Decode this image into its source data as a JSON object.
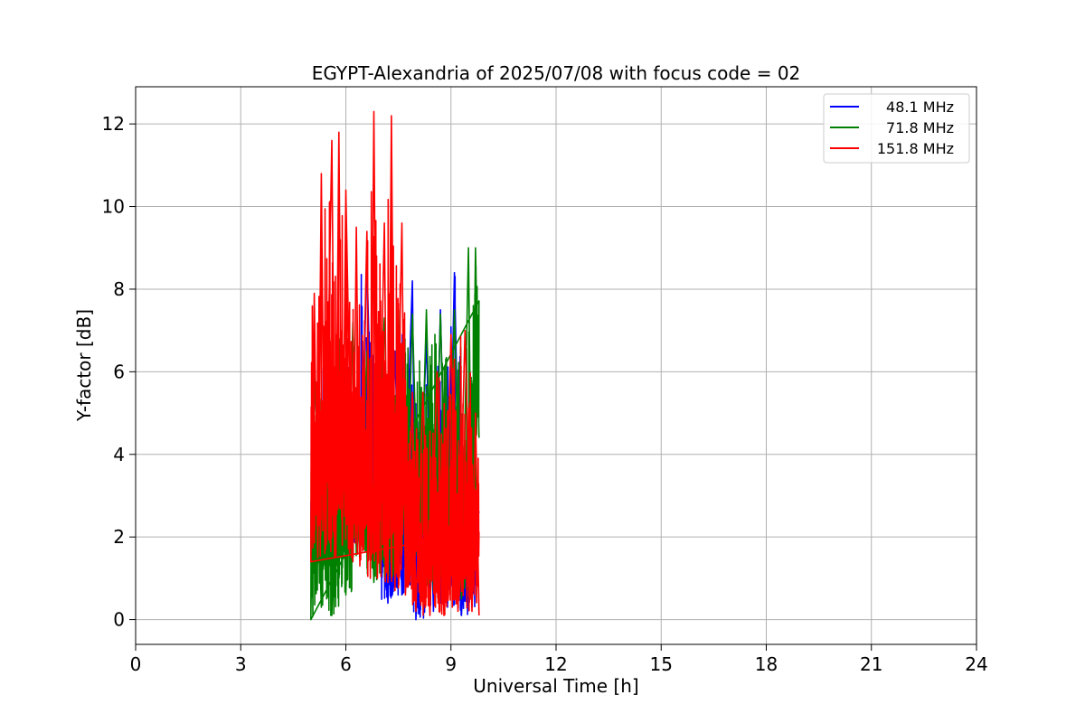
{
  "chart_data": {
    "type": "line",
    "title": "EGYPT-Alexandria of 2025/07/08 with focus code = 02",
    "xlabel": "Universal Time [h]",
    "ylabel": "Y-factor [dB]",
    "xlim": [
      0,
      24
    ],
    "ylim": [
      -0.6,
      12.9
    ],
    "xticks": [
      0,
      3,
      6,
      9,
      12,
      15,
      18,
      21,
      24
    ],
    "yticks": [
      0,
      2,
      4,
      6,
      8,
      10,
      12
    ],
    "grid": true,
    "legend_position": "top-right",
    "series": [
      {
        "name": "48.1 MHz",
        "color": "#0000ff",
        "x_range": [
          5.0,
          9.8
        ],
        "y_range": [
          0.0,
          8.8
        ],
        "points": [
          [
            5.0,
            1.8
          ],
          [
            5.1,
            6.0
          ],
          [
            5.3,
            1.5
          ],
          [
            5.5,
            6.5
          ],
          [
            5.7,
            1.8
          ],
          [
            5.9,
            6.2
          ],
          [
            6.1,
            1.6
          ],
          [
            6.3,
            5.5
          ],
          [
            6.4,
            1.7
          ],
          [
            6.6,
            8.8
          ],
          [
            6.8,
            1.5
          ],
          [
            7.0,
            6.0
          ],
          [
            7.2,
            0.4
          ],
          [
            7.4,
            6.5
          ],
          [
            7.6,
            0.6
          ],
          [
            7.9,
            8.2
          ],
          [
            8.0,
            0.0
          ],
          [
            8.3,
            6.8
          ],
          [
            8.5,
            0.2
          ],
          [
            8.7,
            7.5
          ],
          [
            8.9,
            0.3
          ],
          [
            9.1,
            8.4
          ],
          [
            9.3,
            0.1
          ],
          [
            9.5,
            3.8
          ],
          [
            9.6,
            0.3
          ],
          [
            9.7,
            2.6
          ]
        ]
      },
      {
        "name": "71.8 MHz",
        "color": "#008000",
        "x_range": [
          5.0,
          9.8
        ],
        "y_range": [
          0.0,
          9.0
        ],
        "points": [
          [
            5.0,
            0.0
          ],
          [
            5.1,
            6.2
          ],
          [
            5.3,
            0.3
          ],
          [
            5.5,
            7.5
          ],
          [
            5.6,
            0.1
          ],
          [
            5.8,
            6.8
          ],
          [
            6.0,
            0.6
          ],
          [
            6.2,
            7.2
          ],
          [
            6.4,
            1.5
          ],
          [
            6.6,
            6.5
          ],
          [
            6.8,
            0.9
          ],
          [
            7.1,
            7.3
          ],
          [
            7.3,
            1.0
          ],
          [
            7.5,
            7.5
          ],
          [
            7.7,
            1.3
          ],
          [
            7.9,
            7.4
          ],
          [
            8.1,
            1.2
          ],
          [
            8.3,
            7.5
          ],
          [
            8.5,
            0.7
          ],
          [
            8.7,
            7.4
          ],
          [
            8.9,
            1.0
          ],
          [
            9.1,
            7.5
          ],
          [
            9.3,
            0.5
          ],
          [
            9.5,
            9.0
          ],
          [
            9.6,
            1.4
          ],
          [
            9.7,
            9.0
          ],
          [
            9.8,
            4.4
          ]
        ]
      },
      {
        "name": "151.8 MHz",
        "color": "#ff0000",
        "x_range": [
          5.0,
          9.8
        ],
        "y_range": [
          0.0,
          12.3
        ],
        "points": [
          [
            5.0,
            1.4
          ],
          [
            5.1,
            7.9
          ],
          [
            5.2,
            1.5
          ],
          [
            5.3,
            10.8
          ],
          [
            5.4,
            1.6
          ],
          [
            5.6,
            11.6
          ],
          [
            5.7,
            1.5
          ],
          [
            5.8,
            11.8
          ],
          [
            5.9,
            1.8
          ],
          [
            6.0,
            10.4
          ],
          [
            6.2,
            1.4
          ],
          [
            6.3,
            9.5
          ],
          [
            6.4,
            1.3
          ],
          [
            6.6,
            9.4
          ],
          [
            6.7,
            1.0
          ],
          [
            6.8,
            12.3
          ],
          [
            6.9,
            1.0
          ],
          [
            7.1,
            9.6
          ],
          [
            7.2,
            0.9
          ],
          [
            7.3,
            12.2
          ],
          [
            7.4,
            0.7
          ],
          [
            7.6,
            9.6
          ],
          [
            7.7,
            0.6
          ],
          [
            7.9,
            5.5
          ],
          [
            8.0,
            0.2
          ],
          [
            8.2,
            5.5
          ],
          [
            8.4,
            0.1
          ],
          [
            8.6,
            6.0
          ],
          [
            8.8,
            0.1
          ],
          [
            9.0,
            6.9
          ],
          [
            9.2,
            0.2
          ],
          [
            9.4,
            7.0
          ],
          [
            9.6,
            0.2
          ],
          [
            9.7,
            5.0
          ],
          [
            9.8,
            0.1
          ]
        ]
      }
    ]
  }
}
